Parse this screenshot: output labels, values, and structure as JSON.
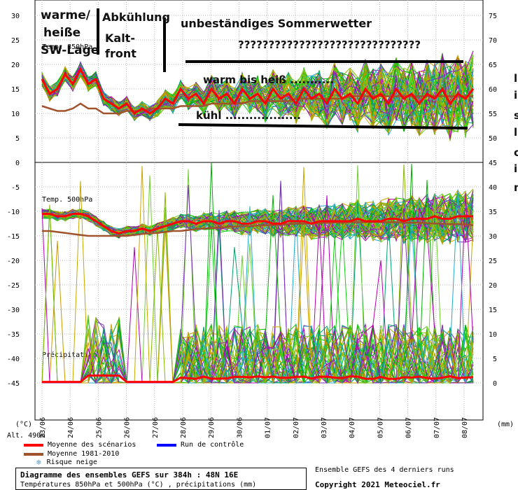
{
  "chart_data": {
    "type": "line",
    "title": "Diagramme des ensembles GEFS sur 384h : 48N 16E",
    "subtitle": "Températures 850hPa et 500hPa (°C) , précipitations (mm)",
    "xlabel": "",
    "ylabel_left": "(°C)",
    "ylabel_right": "(mm)",
    "altitude_label": "Alt. 490m",
    "x_ticks": [
      "23/06",
      "24/06",
      "25/06",
      "26/06",
      "27/06",
      "28/06",
      "29/06",
      "30/06",
      "01/07",
      "02/07",
      "03/07",
      "04/07",
      "05/07",
      "06/07",
      "07/07",
      "08/07"
    ],
    "y_left_ticks": [
      30,
      25,
      20,
      15,
      10,
      5,
      0,
      -5,
      -10,
      -15,
      -20,
      -25,
      -30,
      -35,
      -40,
      -45
    ],
    "y_right_ticks": [
      75,
      70,
      65,
      60,
      55,
      50,
      45,
      40,
      35,
      30,
      25,
      20,
      15,
      10,
      5,
      0
    ],
    "ylim_left": [
      -47,
      33
    ],
    "panels": [
      {
        "label": "Temp. 850hPa"
      },
      {
        "label": "Temp. 500hPa"
      },
      {
        "label": "Précipitations"
      }
    ],
    "series": [
      {
        "name": "Moyenne des scénarios",
        "color": "#ff0000",
        "panel": "t850",
        "values": [
          17,
          14,
          15,
          18,
          16,
          19,
          16,
          17,
          13,
          12,
          11,
          12,
          10,
          11,
          10,
          11,
          13,
          12,
          15,
          13,
          14,
          12,
          15,
          13,
          14,
          12,
          15,
          13,
          14,
          12,
          15,
          13,
          14,
          12,
          15,
          13,
          14,
          12,
          15,
          13,
          14,
          12,
          15,
          13,
          14,
          12,
          15,
          13,
          14,
          12,
          14,
          13,
          15,
          12,
          14,
          13,
          15
        ]
      },
      {
        "name": "Moyenne 1981-2010",
        "color": "#a0522d",
        "panel": "t850",
        "values": [
          11.5,
          11,
          10.5,
          10.5,
          11,
          12,
          11,
          11,
          10,
          10,
          10,
          10.5,
          10.5,
          10.5,
          11,
          11,
          11,
          11,
          11.5,
          11.5,
          11.5,
          11.5,
          12,
          12,
          12,
          12,
          12,
          12.5,
          12.5,
          12.5,
          12.5,
          12.5,
          12.5,
          13,
          13,
          13,
          13,
          13,
          13,
          13,
          13.5,
          13.5,
          13.5,
          13.5,
          13.5,
          13.5,
          13.5,
          13.5,
          13.5,
          13.5,
          13.5,
          13.5,
          13.5,
          13.5,
          13.5,
          13.5,
          13.5
        ]
      },
      {
        "name": "Moyenne des scénarios (500hPa)",
        "color": "#ff0000",
        "panel": "t500",
        "values": [
          -10.5,
          -10.5,
          -11,
          -11,
          -10.5,
          -10.5,
          -11,
          -12,
          -13,
          -14,
          -14.5,
          -14,
          -14,
          -13.5,
          -14,
          -13.5,
          -13,
          -12.5,
          -12,
          -12,
          -12.5,
          -12,
          -12,
          -12.5,
          -12,
          -12,
          -12.5,
          -12.5,
          -12,
          -12,
          -12.5,
          -12.5,
          -12,
          -12,
          -12,
          -12.5,
          -12,
          -12,
          -12,
          -12,
          -12,
          -11.5,
          -12,
          -12,
          -12,
          -11.5,
          -11.5,
          -12,
          -11.5,
          -11.5,
          -11.5,
          -11,
          -11.5,
          -11.5,
          -11,
          -11,
          -11
        ]
      },
      {
        "name": "Moyenne 1981-2010 (500hPa)",
        "color": "#a0522d",
        "panel": "t500",
        "values": [
          -14,
          -14,
          -14.2,
          -14.4,
          -14.6,
          -14.8,
          -15,
          -15,
          -15,
          -15,
          -15,
          -15,
          -14.8,
          -14.6,
          -14.5,
          -14.4,
          -14.2,
          -14,
          -14,
          -13.8,
          -13.6,
          -13.5,
          -13.4,
          -13.3,
          -13.2,
          -13.1,
          -13,
          -13,
          -12.9,
          -12.8,
          -12.8,
          -12.7,
          -12.6,
          -12.5,
          -12.5,
          -12.4,
          -12.4,
          -12.3,
          -12.3,
          -12.3,
          -12.2,
          -12.2,
          -12.2,
          -12.2,
          -12.2,
          -12.2,
          -12.2,
          -12.3,
          -12.3,
          -12.3,
          -12.4,
          -12.5,
          -12.5,
          -12.6,
          -12.6,
          -12.7,
          -12.8
        ]
      }
    ],
    "legend": [
      "Moyenne des scénarios",
      "Run de contrôle",
      "Moyenne 1981-2010",
      "Risque neige"
    ],
    "annotations": [
      "warme/",
      "heiße",
      "SW-Lage",
      "Abkühlung",
      "Kalt-",
      "front",
      "unbeständiges Sommerwetter",
      "??????????????????????????????",
      "warm bis heiß ...........",
      "kühl ..................."
    ]
  },
  "legend": {
    "mean": "Moyenne des scénarios",
    "control": "Run de contrôle",
    "climate": "Moyenne 1981-2010",
    "snow": "Risque neige"
  },
  "footer": {
    "title": "Diagramme des ensembles GEFS sur 384h : 48N 16E",
    "subtitle": "Températures 850hPa et 500hPa (°C) , précipitations (mm)",
    "runs": "Ensemble GEFS des 4 derniers runs",
    "copyright": "Copyright 2021 Meteociel.fr"
  },
  "side_fragments": [
    "l",
    "i",
    "s",
    "l",
    "c",
    "i",
    "m"
  ]
}
